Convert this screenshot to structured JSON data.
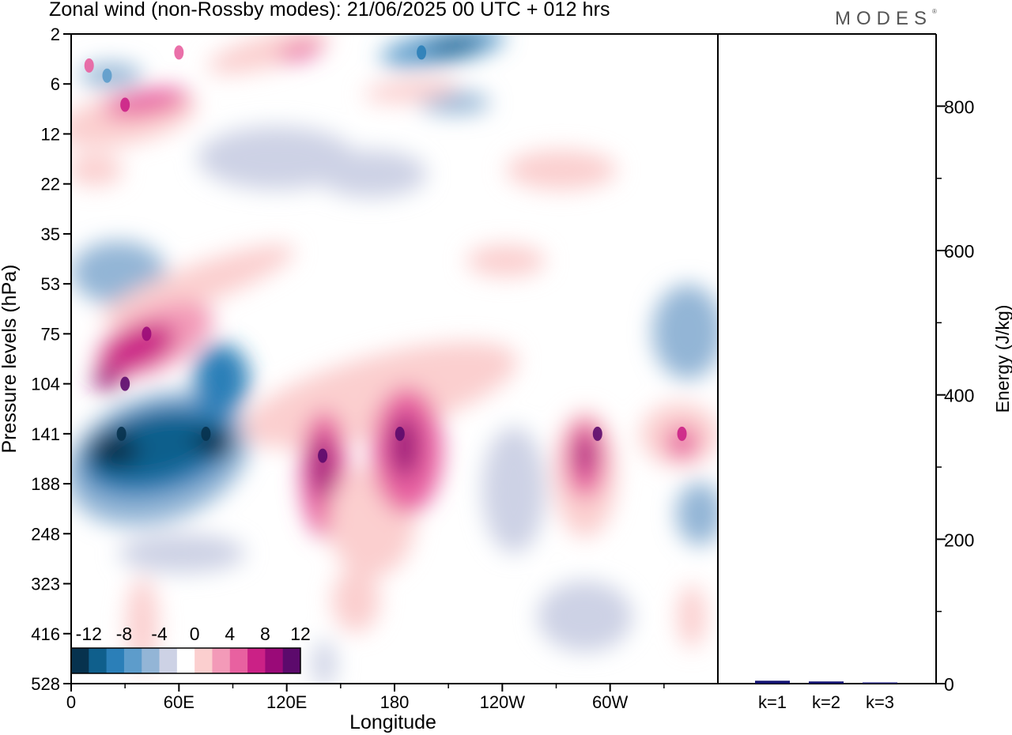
{
  "header": {
    "title": "Zonal wind (non-Rossby modes):  21/06/2025  00 UTC  + 012 hrs",
    "logo": "MODES"
  },
  "chart_data": [
    {
      "type": "heatmap",
      "title": "Zonal wind (non-Rossby modes):  21/06/2025  00 UTC  + 012 hrs",
      "xlabel": "Longitude",
      "ylabel": "Pressure levels (hPa)",
      "x_ticks": [
        "0",
        "60E",
        "120E",
        "180",
        "120W",
        "60W"
      ],
      "y_ticks": [
        "2",
        "6",
        "12",
        "22",
        "35",
        "53",
        "75",
        "104",
        "141",
        "188",
        "248",
        "323",
        "416",
        "528"
      ],
      "colorbar": {
        "labels": [
          "-12",
          "-8",
          "-4",
          "0",
          "4",
          "8",
          "12"
        ],
        "levels": [
          -14,
          -12,
          -10,
          -8,
          -6,
          -4,
          -2,
          2,
          4,
          6,
          8,
          10,
          12,
          14
        ],
        "colors": [
          "#07324e",
          "#0f5f8c",
          "#2b7fb8",
          "#5d9ccb",
          "#93b5d6",
          "#cdd2e5",
          "#ffffff",
          "#fbcfcf",
          "#f39ab8",
          "#e861a0",
          "#cb2186",
          "#9a0a78",
          "#5c0a6c"
        ]
      },
      "features": [
        {
          "lon": 28,
          "lev": 141,
          "value": -15
        },
        {
          "lon": 75,
          "lev": 141,
          "value": -13
        },
        {
          "lon": 42,
          "lev": 75,
          "value": 11
        },
        {
          "lon": 30,
          "lev": 104,
          "value": 12
        },
        {
          "lon": 140,
          "lev": 160,
          "value": 12
        },
        {
          "lon": 183,
          "lev": 141,
          "value": 13
        },
        {
          "lon": 293,
          "lev": 141,
          "value": 13
        },
        {
          "lon": 340,
          "lev": 141,
          "value": 9
        },
        {
          "lon": 195,
          "lev": 3,
          "value": -10
        },
        {
          "lon": 10,
          "lev": 4,
          "value": 6
        },
        {
          "lon": 30,
          "lev": 8,
          "value": 8
        },
        {
          "lon": 60,
          "lev": 3,
          "value": 7
        },
        {
          "lon": 20,
          "lev": 5,
          "value": -7
        }
      ]
    },
    {
      "type": "bar",
      "ylabel": "Energy (J/kg)",
      "categories": [
        "k=1",
        "k=2",
        "k=3"
      ],
      "values": [
        4,
        3,
        1
      ],
      "ylim": [
        0,
        900
      ],
      "y_ticks": [
        "0",
        "200",
        "400",
        "600",
        "800"
      ]
    }
  ]
}
